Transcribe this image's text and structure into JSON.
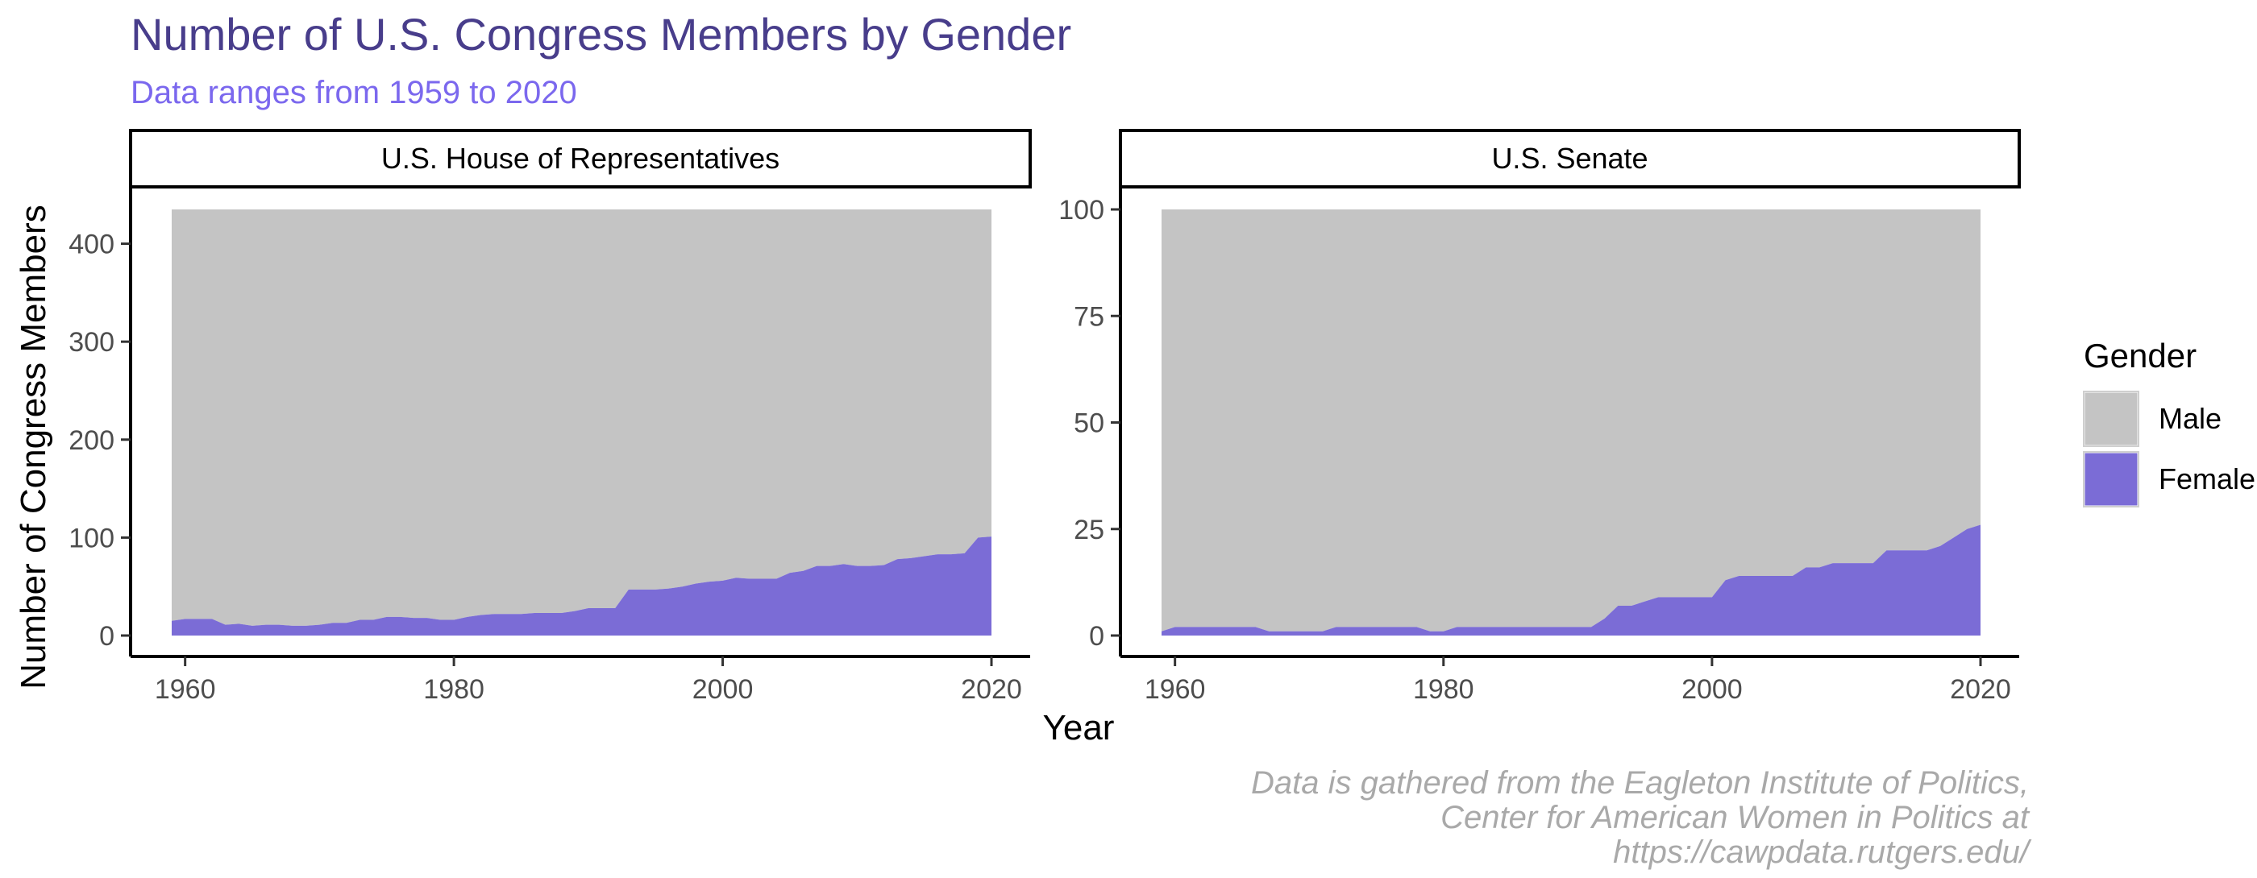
{
  "title": "Number of U.S. Congress Members by Gender",
  "subtitle": "Data ranges from 1959 to 2020",
  "caption_lines": [
    "Data is gathered from the Eagleton Institute of Politics,",
    "Center for American Women in Politics at",
    "https://cawpdata.rutgers.edu/"
  ],
  "colors": {
    "male": "#C4C4C4",
    "female": "#7B6CD6",
    "title": "#483D8B",
    "subtitle": "#7B68EE",
    "caption": "#A9A9A9"
  },
  "chart_data": {
    "type": "area",
    "stacked": true,
    "xlabel": "Year",
    "ylabel": "Number of Congress Members",
    "grid": false,
    "legend": {
      "title": "Gender",
      "position": "right",
      "entries": [
        {
          "label": "Male",
          "color": "#C4C4C4"
        },
        {
          "label": "Female",
          "color": "#7B6CD6"
        }
      ]
    },
    "panels": [
      {
        "name": "U.S. House of Representatives",
        "xlim": [
          1959,
          2020
        ],
        "ylim": [
          0,
          435
        ],
        "x_ticks": [
          1960,
          1980,
          2000,
          2020
        ],
        "y_ticks": [
          0,
          100,
          200,
          300,
          400
        ],
        "series": [
          {
            "name": "Female",
            "x": [
              1959,
              1960,
              1961,
              1962,
              1963,
              1964,
              1965,
              1966,
              1967,
              1968,
              1969,
              1970,
              1971,
              1972,
              1973,
              1974,
              1975,
              1976,
              1977,
              1978,
              1979,
              1980,
              1981,
              1982,
              1983,
              1984,
              1985,
              1986,
              1987,
              1988,
              1989,
              1990,
              1991,
              1992,
              1993,
              1994,
              1995,
              1996,
              1997,
              1998,
              1999,
              2000,
              2001,
              2002,
              2003,
              2004,
              2005,
              2006,
              2007,
              2008,
              2009,
              2010,
              2011,
              2012,
              2013,
              2014,
              2015,
              2016,
              2017,
              2018,
              2019,
              2020
            ],
            "values": [
              15,
              17,
              17,
              17,
              11,
              12,
              10,
              11,
              11,
              10,
              10,
              11,
              13,
              13,
              16,
              16,
              19,
              19,
              18,
              18,
              16,
              16,
              19,
              21,
              22,
              22,
              22,
              23,
              23,
              23,
              25,
              28,
              28,
              28,
              47,
              47,
              47,
              48,
              50,
              53,
              55,
              56,
              59,
              58,
              58,
              58,
              64,
              66,
              71,
              71,
              73,
              71,
              71,
              72,
              78,
              79,
              81,
              83,
              83,
              84,
              100,
              101
            ]
          },
          {
            "name": "Male",
            "x": [
              1959,
              1960,
              1961,
              1962,
              1963,
              1964,
              1965,
              1966,
              1967,
              1968,
              1969,
              1970,
              1971,
              1972,
              1973,
              1974,
              1975,
              1976,
              1977,
              1978,
              1979,
              1980,
              1981,
              1982,
              1983,
              1984,
              1985,
              1986,
              1987,
              1988,
              1989,
              1990,
              1991,
              1992,
              1993,
              1994,
              1995,
              1996,
              1997,
              1998,
              1999,
              2000,
              2001,
              2002,
              2003,
              2004,
              2005,
              2006,
              2007,
              2008,
              2009,
              2010,
              2011,
              2012,
              2013,
              2014,
              2015,
              2016,
              2017,
              2018,
              2019,
              2020
            ],
            "values": [
              420,
              418,
              418,
              418,
              424,
              423,
              425,
              424,
              424,
              425,
              425,
              424,
              422,
              422,
              419,
              419,
              416,
              416,
              417,
              417,
              419,
              419,
              416,
              414,
              413,
              413,
              413,
              412,
              412,
              412,
              410,
              407,
              407,
              407,
              388,
              388,
              388,
              387,
              385,
              382,
              380,
              379,
              376,
              377,
              377,
              377,
              371,
              369,
              364,
              364,
              362,
              364,
              364,
              363,
              357,
              356,
              354,
              352,
              352,
              351,
              335,
              334
            ]
          }
        ]
      },
      {
        "name": "U.S. Senate",
        "xlim": [
          1959,
          2020
        ],
        "ylim": [
          0,
          100
        ],
        "x_ticks": [
          1960,
          1980,
          2000,
          2020
        ],
        "y_ticks": [
          0,
          25,
          50,
          75,
          100
        ],
        "series": [
          {
            "name": "Female",
            "x": [
              1959,
              1960,
              1961,
              1962,
              1963,
              1964,
              1965,
              1966,
              1967,
              1968,
              1969,
              1970,
              1971,
              1972,
              1973,
              1974,
              1975,
              1976,
              1977,
              1978,
              1979,
              1980,
              1981,
              1982,
              1983,
              1984,
              1985,
              1986,
              1987,
              1988,
              1989,
              1990,
              1991,
              1992,
              1993,
              1994,
              1995,
              1996,
              1997,
              1998,
              1999,
              2000,
              2001,
              2002,
              2003,
              2004,
              2005,
              2006,
              2007,
              2008,
              2009,
              2010,
              2011,
              2012,
              2013,
              2014,
              2015,
              2016,
              2017,
              2018,
              2019,
              2020
            ],
            "values": [
              1,
              2,
              2,
              2,
              2,
              2,
              2,
              2,
              1,
              1,
              1,
              1,
              1,
              2,
              2,
              2,
              2,
              2,
              2,
              2,
              1,
              1,
              2,
              2,
              2,
              2,
              2,
              2,
              2,
              2,
              2,
              2,
              2,
              4,
              7,
              7,
              8,
              9,
              9,
              9,
              9,
              9,
              13,
              14,
              14,
              14,
              14,
              14,
              16,
              16,
              17,
              17,
              17,
              17,
              20,
              20,
              20,
              20,
              21,
              23,
              25,
              26
            ]
          },
          {
            "name": "Male",
            "x": [
              1959,
              1960,
              1961,
              1962,
              1963,
              1964,
              1965,
              1966,
              1967,
              1968,
              1969,
              1970,
              1971,
              1972,
              1973,
              1974,
              1975,
              1976,
              1977,
              1978,
              1979,
              1980,
              1981,
              1982,
              1983,
              1984,
              1985,
              1986,
              1987,
              1988,
              1989,
              1990,
              1991,
              1992,
              1993,
              1994,
              1995,
              1996,
              1997,
              1998,
              1999,
              2000,
              2001,
              2002,
              2003,
              2004,
              2005,
              2006,
              2007,
              2008,
              2009,
              2010,
              2011,
              2012,
              2013,
              2014,
              2015,
              2016,
              2017,
              2018,
              2019,
              2020
            ],
            "values": [
              99,
              98,
              98,
              98,
              98,
              98,
              98,
              98,
              99,
              99,
              99,
              99,
              99,
              98,
              98,
              98,
              98,
              98,
              98,
              98,
              99,
              99,
              98,
              98,
              98,
              98,
              98,
              98,
              98,
              98,
              98,
              98,
              98,
              96,
              93,
              93,
              92,
              91,
              91,
              91,
              91,
              91,
              87,
              86,
              86,
              86,
              86,
              86,
              84,
              84,
              83,
              83,
              83,
              83,
              80,
              80,
              80,
              80,
              79,
              77,
              75,
              74
            ]
          }
        ]
      }
    ]
  }
}
